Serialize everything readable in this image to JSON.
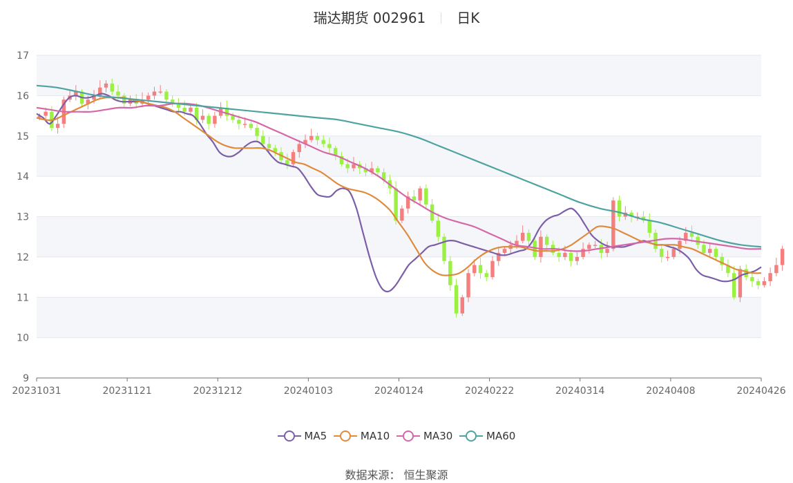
{
  "title": {
    "name": "瑞达期货 002961",
    "period": "日K"
  },
  "source": "数据来源： 恒生聚源",
  "colors": {
    "up": "#f47f7f",
    "down": "#9bf043",
    "band": "#f5f6fa",
    "grid": "#e4e7ee",
    "axis": "#6e7079"
  },
  "chart_data": {
    "type": "candlestick",
    "x_labels": [
      "20231031",
      "20231121",
      "20231212",
      "20240103",
      "20240124",
      "20240222",
      "20240314",
      "20240408",
      "20240426"
    ],
    "y_axis": {
      "min": 9,
      "max": 17,
      "ticks": [
        "9",
        "10",
        "11",
        "12",
        "13",
        "14",
        "15",
        "16",
        "17"
      ]
    },
    "candle_count": 120,
    "closes": [
      15.5,
      15.6,
      15.2,
      15.3,
      15.9,
      16.0,
      16.1,
      15.8,
      15.9,
      16.0,
      16.2,
      16.3,
      16.1,
      16.0,
      15.8,
      15.9,
      15.8,
      15.9,
      16.0,
      16.1,
      16.1,
      15.9,
      15.8,
      15.7,
      15.6,
      15.7,
      15.4,
      15.5,
      15.3,
      15.5,
      15.7,
      15.5,
      15.4,
      15.3,
      15.3,
      15.2,
      15.0,
      14.8,
      14.7,
      14.6,
      14.4,
      14.3,
      14.6,
      14.8,
      14.9,
      15.0,
      14.9,
      14.8,
      14.7,
      14.5,
      14.3,
      14.2,
      14.3,
      14.2,
      14.1,
      14.2,
      14.1,
      13.9,
      13.7,
      12.9,
      13.2,
      13.5,
      13.4,
      13.7,
      13.3,
      12.9,
      12.5,
      11.9,
      11.3,
      10.6,
      11.0,
      11.6,
      11.8,
      11.6,
      11.5,
      11.9,
      12.1,
      12.2,
      12.3,
      12.4,
      12.6,
      12.4,
      12.0,
      12.5,
      12.3,
      12.1,
      12.0,
      12.1,
      11.9,
      12.0,
      12.2,
      12.3,
      12.3,
      12.1,
      12.2,
      13.4,
      13.0,
      13.1,
      13.0,
      13.0,
      12.9,
      12.6,
      12.2,
      12.0,
      12.0,
      12.2,
      12.4,
      12.6,
      12.5,
      12.3,
      12.1,
      12.2,
      12.0,
      11.8,
      11.6,
      11.0,
      11.7,
      11.5,
      11.4,
      11.3,
      11.4,
      11.6,
      11.8,
      12.2
    ],
    "series": [
      {
        "name": "MA5",
        "color": "#7b5ea7"
      },
      {
        "name": "MA10",
        "color": "#e08a3c"
      },
      {
        "name": "MA30",
        "color": "#d566a8"
      },
      {
        "name": "MA60",
        "color": "#4ea3a0"
      }
    ],
    "ma_values": {
      "MA5": [
        15.55,
        15.45,
        15.3,
        15.5,
        15.75,
        15.95,
        16.0,
        15.95,
        15.95,
        16.0,
        16.05,
        16.0,
        15.9,
        15.85,
        15.85,
        15.85,
        15.85,
        15.8,
        15.75,
        15.7,
        15.65,
        15.6,
        15.6,
        15.55,
        15.5,
        15.3,
        15.05,
        14.85,
        14.6,
        14.5,
        14.5,
        14.6,
        14.75,
        14.85,
        14.85,
        14.7,
        14.5,
        14.35,
        14.3,
        14.25,
        14.2,
        14.0,
        13.75,
        13.55,
        13.5,
        13.5,
        13.65,
        13.7,
        13.6,
        13.2,
        12.6,
        12.0,
        11.5,
        11.2,
        11.15,
        11.3,
        11.55,
        11.8,
        11.95,
        12.1,
        12.25,
        12.3,
        12.35,
        12.4,
        12.4,
        12.35,
        12.3,
        12.25,
        12.2,
        12.15,
        12.1,
        12.05,
        12.05,
        12.1,
        12.15,
        12.2,
        12.4,
        12.7,
        12.9,
        13.0,
        13.05,
        13.15,
        13.2,
        13.05,
        12.8,
        12.55,
        12.4,
        12.3,
        12.25,
        12.25,
        12.25,
        12.3,
        12.35,
        12.4,
        12.35,
        12.3,
        12.3,
        12.25,
        12.2,
        12.1,
        11.95,
        11.7,
        11.55,
        11.5,
        11.45,
        11.4,
        11.4,
        11.45,
        11.55,
        11.6,
        11.65,
        11.75
      ],
      "MA10": [
        15.45,
        15.4,
        15.4,
        15.5,
        15.6,
        15.7,
        15.8,
        15.9,
        15.95,
        15.95,
        15.95,
        15.9,
        15.85,
        15.8,
        15.75,
        15.7,
        15.6,
        15.45,
        15.3,
        15.15,
        15.0,
        14.85,
        14.75,
        14.7,
        14.7,
        14.7,
        14.7,
        14.65,
        14.55,
        14.45,
        14.35,
        14.3,
        14.2,
        14.1,
        13.95,
        13.8,
        13.7,
        13.65,
        13.6,
        13.5,
        13.35,
        13.15,
        12.85,
        12.55,
        12.2,
        11.85,
        11.65,
        11.55,
        11.55,
        11.6,
        11.75,
        11.95,
        12.1,
        12.2,
        12.25,
        12.25,
        12.25,
        12.2,
        12.15,
        12.15,
        12.15,
        12.2,
        12.3,
        12.45,
        12.6,
        12.75,
        12.75,
        12.7,
        12.6,
        12.5,
        12.4,
        12.35,
        12.3,
        12.3,
        12.3,
        12.25,
        12.2,
        12.1,
        12.0,
        11.9,
        11.8,
        11.7,
        11.65,
        11.6,
        11.6
      ],
      "MA30": [
        15.7,
        15.65,
        15.6,
        15.6,
        15.6,
        15.65,
        15.7,
        15.7,
        15.75,
        15.75,
        15.8,
        15.8,
        15.75,
        15.65,
        15.55,
        15.45,
        15.35,
        15.2,
        15.05,
        14.9,
        14.75,
        14.6,
        14.5,
        14.35,
        14.2,
        14.0,
        13.75,
        13.5,
        13.3,
        13.1,
        12.95,
        12.85,
        12.75,
        12.6,
        12.45,
        12.3,
        12.25,
        12.2,
        12.2,
        12.15,
        12.15,
        12.2,
        12.25,
        12.3,
        12.35,
        12.4,
        12.45,
        12.45,
        12.4,
        12.35,
        12.3,
        12.25,
        12.2,
        12.2
      ],
      "MA60": [
        16.25,
        16.2,
        16.1,
        16.0,
        15.95,
        15.9,
        15.85,
        15.8,
        15.75,
        15.7,
        15.65,
        15.6,
        15.55,
        15.5,
        15.45,
        15.4,
        15.3,
        15.2,
        15.1,
        14.95,
        14.75,
        14.55,
        14.35,
        14.15,
        13.95,
        13.75,
        13.55,
        13.35,
        13.2,
        13.1,
        12.95,
        12.85,
        12.7,
        12.55,
        12.4,
        12.3,
        12.25
      ]
    }
  }
}
